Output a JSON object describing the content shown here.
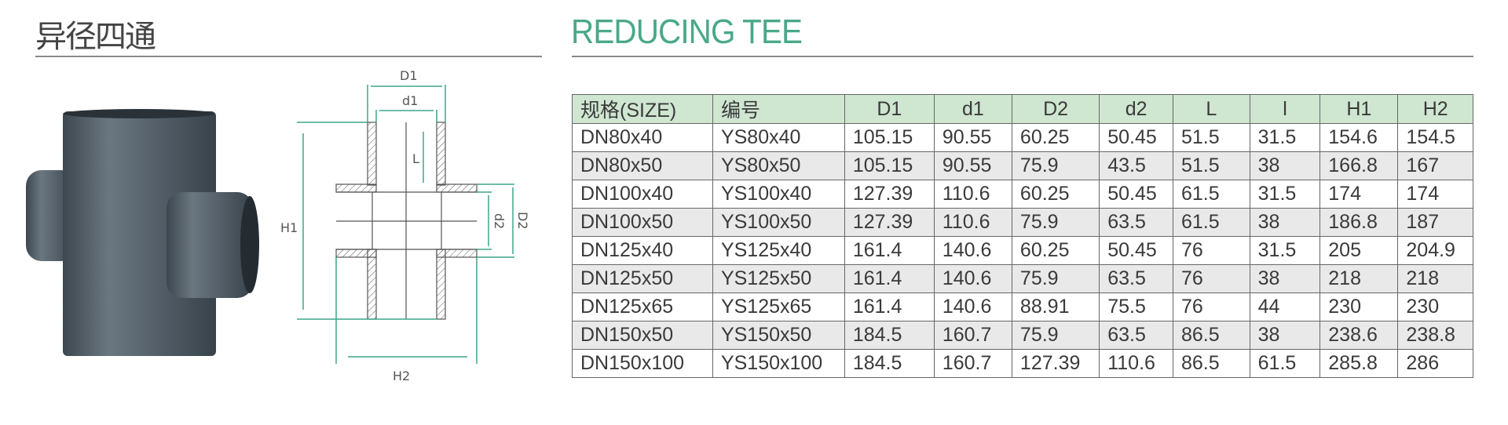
{
  "header": {
    "title_cn": "异径四通",
    "title_en": "REDUCING TEE"
  },
  "drawing": {
    "labels": {
      "D1": "D1",
      "d1": "d1",
      "L": "L",
      "H1": "H1",
      "d2": "d2",
      "D2": "D2",
      "H2": "H2"
    },
    "accent_color": "#3fa58a"
  },
  "table": {
    "header_color": "#cfe6d1",
    "columns": [
      "规格(SIZE)",
      "编号",
      "D1",
      "d1",
      "D2",
      "d2",
      "L",
      "l",
      "H1",
      "H2"
    ],
    "rows": [
      [
        "DN80x40",
        "YS80x40",
        "105.15",
        "90.55",
        "60.25",
        "50.45",
        "51.5",
        "31.5",
        "154.6",
        "154.5"
      ],
      [
        "DN80x50",
        "YS80x50",
        "105.15",
        "90.55",
        "75.9",
        "43.5",
        "51.5",
        "38",
        "166.8",
        "167"
      ],
      [
        "DN100x40",
        "YS100x40",
        "127.39",
        "110.6",
        "60.25",
        "50.45",
        "61.5",
        "31.5",
        "174",
        "174"
      ],
      [
        "DN100x50",
        "YS100x50",
        "127.39",
        "110.6",
        "75.9",
        "63.5",
        "61.5",
        "38",
        "186.8",
        "187"
      ],
      [
        "DN125x40",
        "YS125x40",
        "161.4",
        "140.6",
        "60.25",
        "50.45",
        "76",
        "31.5",
        "205",
        "204.9"
      ],
      [
        "DN125x50",
        "YS125x50",
        "161.4",
        "140.6",
        "75.9",
        "63.5",
        "76",
        "38",
        "218",
        "218"
      ],
      [
        "DN125x65",
        "YS125x65",
        "161.4",
        "140.6",
        "88.91",
        "75.5",
        "76",
        "44",
        "230",
        "230"
      ],
      [
        "DN150x50",
        "YS150x50",
        "184.5",
        "160.7",
        "75.9",
        "63.5",
        "86.5",
        "38",
        "238.6",
        "238.8"
      ],
      [
        "DN150x100",
        "YS150x100",
        "184.5",
        "160.7",
        "127.39",
        "110.6",
        "86.5",
        "61.5",
        "285.8",
        "286"
      ]
    ]
  }
}
